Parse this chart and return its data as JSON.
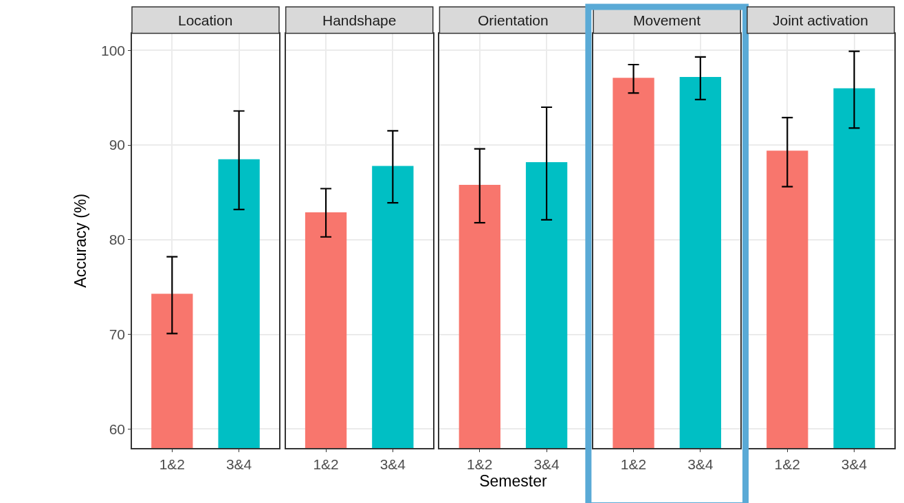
{
  "chart_data": [
    {
      "type": "bar",
      "title": "Location",
      "ylabel": "Accuracy (%)",
      "categories": [
        "1&2",
        "3&4"
      ],
      "values": [
        74.3,
        88.5
      ],
      "colors": [
        "#f8766d",
        "#00bfc4"
      ],
      "errors": [
        [
          70.1,
          78.2
        ],
        [
          83.2,
          93.6
        ]
      ],
      "ylim": [
        58,
        101.8
      ],
      "yticks": [
        60,
        70,
        80,
        90,
        100
      ],
      "grid": true
    },
    {
      "type": "bar",
      "title": "Handshape",
      "categories": [
        "1&2",
        "3&4"
      ],
      "values": [
        82.9,
        87.8
      ],
      "colors": [
        "#f8766d",
        "#00bfc4"
      ],
      "errors": [
        [
          80.3,
          85.4
        ],
        [
          83.9,
          91.5
        ]
      ],
      "ylim": [
        58,
        101.8
      ],
      "yticks": [
        60,
        70,
        80,
        90,
        100
      ],
      "grid": true,
      "tick_labels": "x"
    },
    {
      "type": "bar",
      "title": "Orientation",
      "xlabel": "Semester",
      "categories": [
        "1&2",
        "3&4"
      ],
      "values": [
        85.8,
        88.2
      ],
      "colors": [
        "#f8766d",
        "#00bfc4"
      ],
      "errors": [
        [
          81.8,
          89.6
        ],
        [
          82.1,
          94.0
        ]
      ],
      "ylim": [
        58,
        101.8
      ],
      "yticks": [
        60,
        70,
        80,
        90,
        100
      ],
      "grid": true,
      "tick_labels": "x"
    },
    {
      "type": "bar",
      "title": "Movement",
      "categories": [
        "1&2",
        "3&4"
      ],
      "values": [
        97.1,
        97.2
      ],
      "colors": [
        "#f8766d",
        "#00bfc4"
      ],
      "errors": [
        [
          95.5,
          98.5
        ],
        [
          94.8,
          99.3
        ]
      ],
      "ylim": [
        58,
        101.8
      ],
      "yticks": [
        60,
        70,
        80,
        90,
        100
      ],
      "grid": true,
      "tick_labels": "x"
    },
    {
      "type": "bar",
      "title": "Joint activation",
      "categories": [
        "1&2",
        "3&4"
      ],
      "values": [
        89.4,
        96.0
      ],
      "colors": [
        "#f8766d",
        "#00bfc4"
      ],
      "errors": [
        [
          85.6,
          92.9
        ],
        [
          91.8,
          99.9
        ]
      ],
      "ylim": [
        58,
        101.8
      ],
      "yticks": [
        60,
        70,
        80,
        90,
        100
      ],
      "grid": true,
      "tick_labels": "x"
    }
  ]
}
